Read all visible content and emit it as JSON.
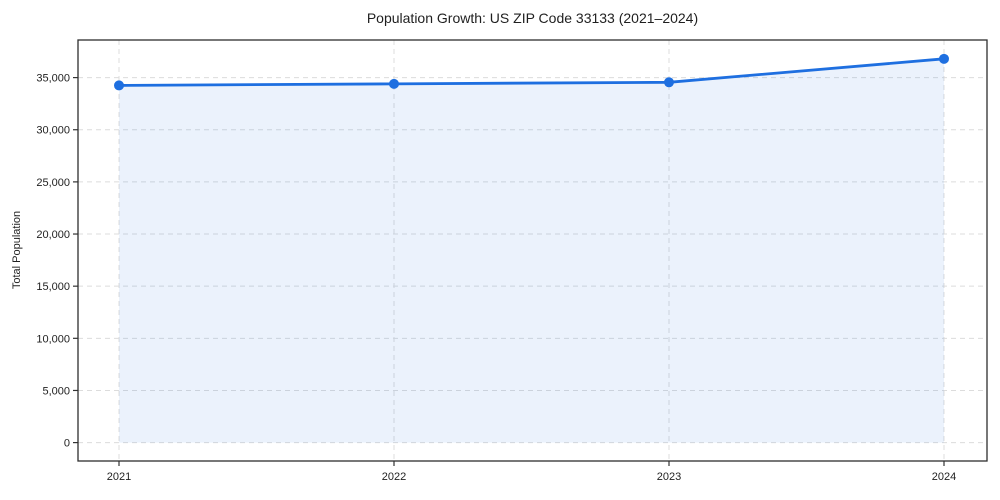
{
  "figure": {
    "background": "#ffffff"
  },
  "chart_data": {
    "type": "area",
    "title": "Population Growth: US ZIP Code 33133 (2021–2024)",
    "xlabel": "",
    "ylabel": "Total Population",
    "categories": [
      "2021",
      "2022",
      "2023",
      "2024"
    ],
    "series": [
      {
        "name": "Total Population",
        "values": [
          34250,
          34400,
          34550,
          36800
        ]
      }
    ],
    "yticks": [
      0,
      5000,
      10000,
      15000,
      20000,
      25000,
      30000,
      35000
    ],
    "ytick_labels": [
      "0",
      "5,000",
      "10,000",
      "15,000",
      "20,000",
      "25,000",
      "30,000",
      "35,000"
    ],
    "ylim": [
      0,
      38600
    ],
    "grid": true,
    "grid_style": "dashed",
    "legend": false,
    "line_color": "#1e6fe0",
    "marker_color": "#1e6fe0",
    "fill_color": "#1e6ee017",
    "grid_color": "#dcdcdc",
    "axis_color": "#2e2e2e",
    "text_color": "#1f1f1f"
  }
}
